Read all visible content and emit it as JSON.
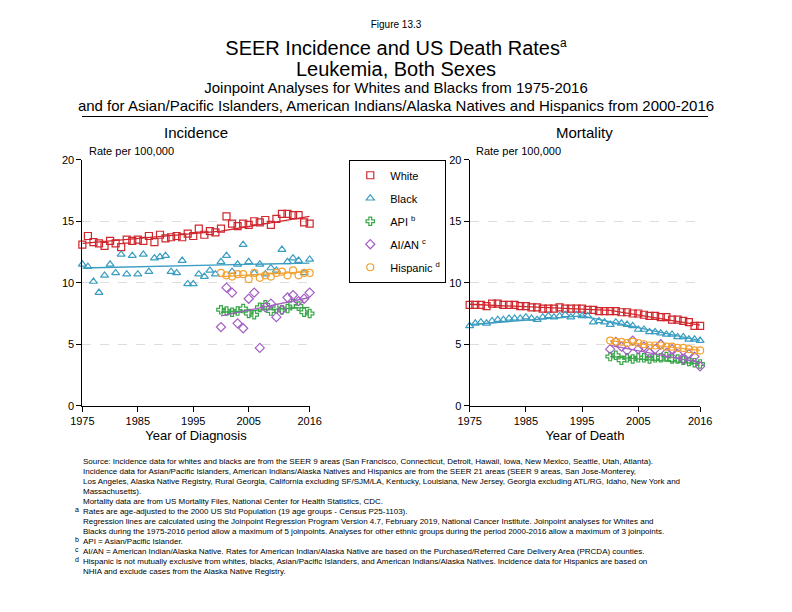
{
  "figure_label": "Figure 13.3",
  "title": [
    "SEER Incidence and US Death Rates",
    "Leukemia, Both Sexes"
  ],
  "title_mark": "a",
  "subtitle": [
    "Joinpoint Analyses for Whites and Blacks from 1975-2016",
    "and for Asian/Pacific Islanders, American Indians/Alaska Natives and Hispanics from 2000-2016"
  ],
  "notes": [
    {
      "lines": [
        "Source:  Incidence data for whites and blacks are from the SEER 9 areas (San Francisco, Connecticut, Detroit, Hawaii, Iowa, New Mexico, Seattle, Utah, Atlanta).",
        "Incidence data for Asian/Pacific Islanders, American Indians/Alaska Natives and Hispanics are from the SEER 21 areas (SEER 9 areas, San Jose-Monterey,",
        "Los Angeles, Alaska Native Registry, Rural Georgia, California excluding SF/SJM/LA, Kentucky, Louisiana, New Jersey, Georgia excluding ATL/RG, Idaho, New York and",
        "Massachusetts).",
        "Mortality data are from US Mortality Files, National Center for Health Statistics, CDC."
      ]
    },
    {
      "mark": "a",
      "lines": [
        "Rates are age-adjusted to the 2000 US Std Population (19 age groups - Census P25-1103).",
        "Regression lines are calculated using the Joinpoint Regression Program Version 4.7, February 2019, National Cancer Institute.  Joinpoint analyses for Whites and",
        "Blacks during the 1975-2016 period allow a maximum of 5 joinpoints. Analyses for other ethnic groups during the period 2000-2016 allow a maximum of 3 joinpoints."
      ]
    },
    {
      "mark": "b",
      "lines": [
        "API = Asian/Pacific Islander."
      ]
    },
    {
      "mark": "c",
      "lines": [
        "AI/AN = American Indian/Alaska Native.  Rates for American Indian/Alaska Native are based on the Purchased/Referred Care Delivery Area (PRCDA) counties."
      ]
    },
    {
      "mark": "d",
      "lines": [
        "Hispanic is not mutually exclusive from whites, blacks, Asian/Pacific Islanders, and American Indians/Alaska Natives.  Incidence data for Hispanics are based on",
        "NHIA and exclude cases from the Alaska Native Registry."
      ]
    }
  ],
  "chart_data": [
    {
      "type": "scatter",
      "title": "Incidence",
      "x_label": "Year of Diagnosis",
      "y_label": "Rate per 100,000",
      "xlim": [
        1975,
        2016
      ],
      "xticks": [
        1975,
        1985,
        1995,
        2005,
        2016
      ],
      "ylim": [
        0,
        20
      ],
      "yticks": [
        0,
        5,
        10,
        15,
        20
      ],
      "grid": true,
      "legend": "right",
      "series": [
        {
          "name": "White",
          "color": "#d0262d",
          "marker": "square-open",
          "x": [
            1975,
            1976,
            1977,
            1978,
            1979,
            1980,
            1981,
            1982,
            1983,
            1984,
            1985,
            1986,
            1987,
            1988,
            1989,
            1990,
            1991,
            1992,
            1993,
            1994,
            1995,
            1996,
            1997,
            1998,
            1999,
            2000,
            2001,
            2002,
            2003,
            2004,
            2005,
            2006,
            2007,
            2008,
            2009,
            2010,
            2011,
            2012,
            2013,
            2014,
            2015,
            2016
          ],
          "values": [
            13.1,
            13.8,
            13.3,
            13.2,
            13.0,
            13.4,
            13.2,
            12.9,
            13.5,
            13.4,
            13.5,
            13.4,
            13.8,
            13.3,
            13.9,
            13.6,
            13.7,
            13.8,
            13.7,
            14.0,
            13.8,
            14.4,
            13.9,
            14.2,
            14.1,
            14.4,
            15.4,
            14.8,
            14.6,
            14.8,
            14.7,
            15.0,
            14.9,
            15.1,
            14.7,
            15.2,
            15.6,
            15.6,
            15.5,
            15.5,
            14.9,
            14.8
          ],
          "trend": {
            "x": [
              1975,
              2000,
              2016
            ],
            "values": [
              13.2,
              14.2,
              15.4
            ],
            "line_style": "solid"
          }
        },
        {
          "name": "Black",
          "color": "#3a9dc2",
          "marker": "triangle-up-open",
          "x": [
            1975,
            1976,
            1977,
            1978,
            1979,
            1980,
            1981,
            1982,
            1983,
            1984,
            1985,
            1986,
            1987,
            1988,
            1989,
            1990,
            1991,
            1992,
            1993,
            1994,
            1995,
            1996,
            1997,
            1998,
            1999,
            2000,
            2001,
            2002,
            2003,
            2004,
            2005,
            2006,
            2007,
            2008,
            2009,
            2010,
            2011,
            2012,
            2013,
            2014,
            2015,
            2016
          ],
          "values": [
            11.5,
            11.3,
            10.1,
            9.2,
            10.6,
            11.5,
            10.8,
            12.3,
            10.7,
            12.2,
            10.7,
            12.3,
            10.9,
            12.0,
            12.1,
            12.2,
            10.9,
            10.8,
            11.8,
            9.9,
            9.9,
            10.7,
            10.5,
            11.0,
            10.7,
            11.7,
            12.2,
            10.9,
            11.5,
            13.1,
            11.7,
            10.8,
            11.5,
            10.7,
            11.2,
            11.0,
            12.7,
            11.7,
            12.0,
            11.8,
            10.8,
            11.9
          ],
          "trend": {
            "x": [
              1975,
              2016
            ],
            "values": [
              11.2,
              11.6
            ],
            "line_style": "solid"
          }
        },
        {
          "name": "API",
          "mark": "b",
          "color": "#3aa64a",
          "marker": "cross-open",
          "x": [
            2000,
            2001,
            2002,
            2003,
            2004,
            2005,
            2006,
            2007,
            2008,
            2009,
            2010,
            2011,
            2012,
            2013,
            2014,
            2015,
            2016
          ],
          "values": [
            7.8,
            7.7,
            7.6,
            7.7,
            7.9,
            7.5,
            7.4,
            8.0,
            8.2,
            7.7,
            7.9,
            7.8,
            7.9,
            8.3,
            8.1,
            7.6,
            7.5
          ],
          "trend": {
            "x": [
              2000,
              2016
            ],
            "values": [
              7.6,
              8.0
            ],
            "line_style": "solid"
          }
        },
        {
          "name": "AI/AN",
          "mark": "c",
          "color": "#a45fc4",
          "marker": "diamond-open",
          "x": [
            2000,
            2001,
            2002,
            2003,
            2004,
            2005,
            2006,
            2007,
            2008,
            2009,
            2010,
            2011,
            2012,
            2013,
            2014,
            2015,
            2016
          ],
          "values": [
            6.4,
            9.6,
            9.2,
            6.7,
            6.3,
            8.7,
            9.2,
            4.7,
            8.0,
            8.3,
            7.2,
            7.8,
            8.8,
            9.0,
            8.5,
            8.7,
            9.2
          ],
          "trend": {
            "x": [
              2000,
              2016
            ],
            "values": [
              7.3,
              8.8
            ],
            "line_style": "solid"
          }
        },
        {
          "name": "Hispanic",
          "mark": "d",
          "color": "#f2a230",
          "marker": "circle-open",
          "x": [
            2000,
            2001,
            2002,
            2003,
            2004,
            2005,
            2006,
            2007,
            2008,
            2009,
            2010,
            2011,
            2012,
            2013,
            2014,
            2015,
            2016
          ],
          "values": [
            10.8,
            10.6,
            10.5,
            10.7,
            10.7,
            10.3,
            10.8,
            10.4,
            10.6,
            10.5,
            10.8,
            10.9,
            10.6,
            11.0,
            10.6,
            10.8,
            10.8
          ],
          "trend": {
            "x": [
              2000,
              2016
            ],
            "values": [
              10.5,
              10.9
            ],
            "line_style": "solid"
          }
        }
      ]
    },
    {
      "type": "scatter",
      "title": "Mortality",
      "x_label": "Year of Death",
      "y_label": "Rate per 100,000",
      "xlim": [
        1975,
        2016
      ],
      "xticks": [
        1975,
        1985,
        1995,
        2005,
        2016
      ],
      "ylim": [
        0,
        20
      ],
      "yticks": [
        0,
        5,
        10,
        15,
        20
      ],
      "grid": true,
      "series": [
        {
          "name": "White",
          "color": "#d0262d",
          "marker": "square-open",
          "x": [
            1975,
            1976,
            1977,
            1978,
            1979,
            1980,
            1981,
            1982,
            1983,
            1984,
            1985,
            1986,
            1987,
            1988,
            1989,
            1990,
            1991,
            1992,
            1993,
            1994,
            1995,
            1996,
            1997,
            1998,
            1999,
            2000,
            2001,
            2002,
            2003,
            2004,
            2005,
            2006,
            2007,
            2008,
            2009,
            2010,
            2011,
            2012,
            2013,
            2014,
            2015,
            2016
          ],
          "values": [
            8.2,
            8.2,
            8.2,
            8.1,
            8.3,
            8.3,
            8.2,
            8.2,
            8.2,
            8.1,
            8.1,
            8.0,
            8.0,
            7.9,
            7.9,
            7.9,
            8.0,
            7.9,
            7.9,
            7.9,
            7.9,
            7.8,
            7.8,
            7.7,
            7.7,
            7.7,
            7.7,
            7.6,
            7.6,
            7.5,
            7.5,
            7.4,
            7.3,
            7.3,
            7.2,
            7.2,
            7.0,
            7.0,
            6.9,
            6.8,
            6.5,
            6.5
          ],
          "trend": {
            "x": [
              1975,
              2000,
              2016
            ],
            "values": [
              8.25,
              7.75,
              6.55
            ],
            "line_style": "solid"
          }
        },
        {
          "name": "Black",
          "color": "#3a9dc2",
          "marker": "triangle-up-open",
          "x": [
            1975,
            1976,
            1977,
            1978,
            1979,
            1980,
            1981,
            1982,
            1983,
            1984,
            1985,
            1986,
            1987,
            1988,
            1989,
            1990,
            1991,
            1992,
            1993,
            1994,
            1995,
            1996,
            1997,
            1998,
            1999,
            2000,
            2001,
            2002,
            2003,
            2004,
            2005,
            2006,
            2007,
            2008,
            2009,
            2010,
            2011,
            2012,
            2013,
            2014,
            2015,
            2016
          ],
          "values": [
            6.5,
            6.7,
            6.8,
            6.7,
            6.9,
            7.0,
            7.0,
            7.1,
            7.1,
            7.1,
            7.2,
            7.1,
            7.0,
            7.2,
            7.3,
            7.2,
            7.3,
            7.4,
            7.2,
            7.4,
            7.3,
            7.3,
            6.8,
            6.9,
            6.8,
            6.6,
            6.8,
            6.7,
            6.6,
            6.5,
            6.2,
            6.2,
            6.0,
            6.0,
            5.9,
            5.8,
            5.8,
            5.6,
            5.6,
            5.4,
            5.4,
            5.3
          ],
          "trend": {
            "x": [
              1975,
              1995,
              2016
            ],
            "values": [
              6.6,
              7.3,
              5.3
            ],
            "line_style": "solid"
          }
        },
        {
          "name": "API",
          "mark": "b",
          "color": "#3aa64a",
          "marker": "cross-open",
          "x": [
            2000,
            2001,
            2002,
            2003,
            2004,
            2005,
            2006,
            2007,
            2008,
            2009,
            2010,
            2011,
            2012,
            2013,
            2014,
            2015,
            2016
          ],
          "values": [
            4.0,
            4.1,
            3.7,
            3.9,
            3.8,
            3.9,
            3.9,
            3.8,
            3.9,
            3.9,
            4.0,
            3.8,
            3.8,
            3.7,
            3.6,
            3.5,
            3.4
          ],
          "trend": {
            "x": [
              2000,
              2016
            ],
            "values": [
              4.0,
              3.4
            ],
            "line_style": "solid"
          }
        },
        {
          "name": "AI/AN",
          "mark": "c",
          "color": "#a45fc4",
          "marker": "diamond-open",
          "x": [
            2000,
            2001,
            2002,
            2003,
            2004,
            2005,
            2006,
            2007,
            2008,
            2009,
            2010,
            2011,
            2012,
            2013,
            2014,
            2015,
            2016
          ],
          "values": [
            4.6,
            5.2,
            4.8,
            4.5,
            5.3,
            4.6,
            4.8,
            4.3,
            4.6,
            5.0,
            4.3,
            4.6,
            4.2,
            3.8,
            4.2,
            4.0,
            3.2
          ],
          "trend": {
            "x": [
              2000,
              2016
            ],
            "values": [
              4.9,
              3.5
            ],
            "line_style": "solid"
          }
        },
        {
          "name": "Hispanic",
          "mark": "d",
          "color": "#f2a230",
          "marker": "circle-open",
          "x": [
            2000,
            2001,
            2002,
            2003,
            2004,
            2005,
            2006,
            2007,
            2008,
            2009,
            2010,
            2011,
            2012,
            2013,
            2014,
            2015,
            2016
          ],
          "values": [
            5.3,
            5.2,
            5.2,
            5.1,
            5.2,
            5.1,
            5.0,
            4.9,
            4.9,
            4.9,
            4.8,
            4.8,
            4.7,
            4.7,
            4.6,
            4.5,
            4.5
          ],
          "trend": {
            "x": [
              2000,
              2016
            ],
            "values": [
              5.3,
              4.5
            ],
            "line_style": "solid"
          }
        }
      ]
    }
  ]
}
